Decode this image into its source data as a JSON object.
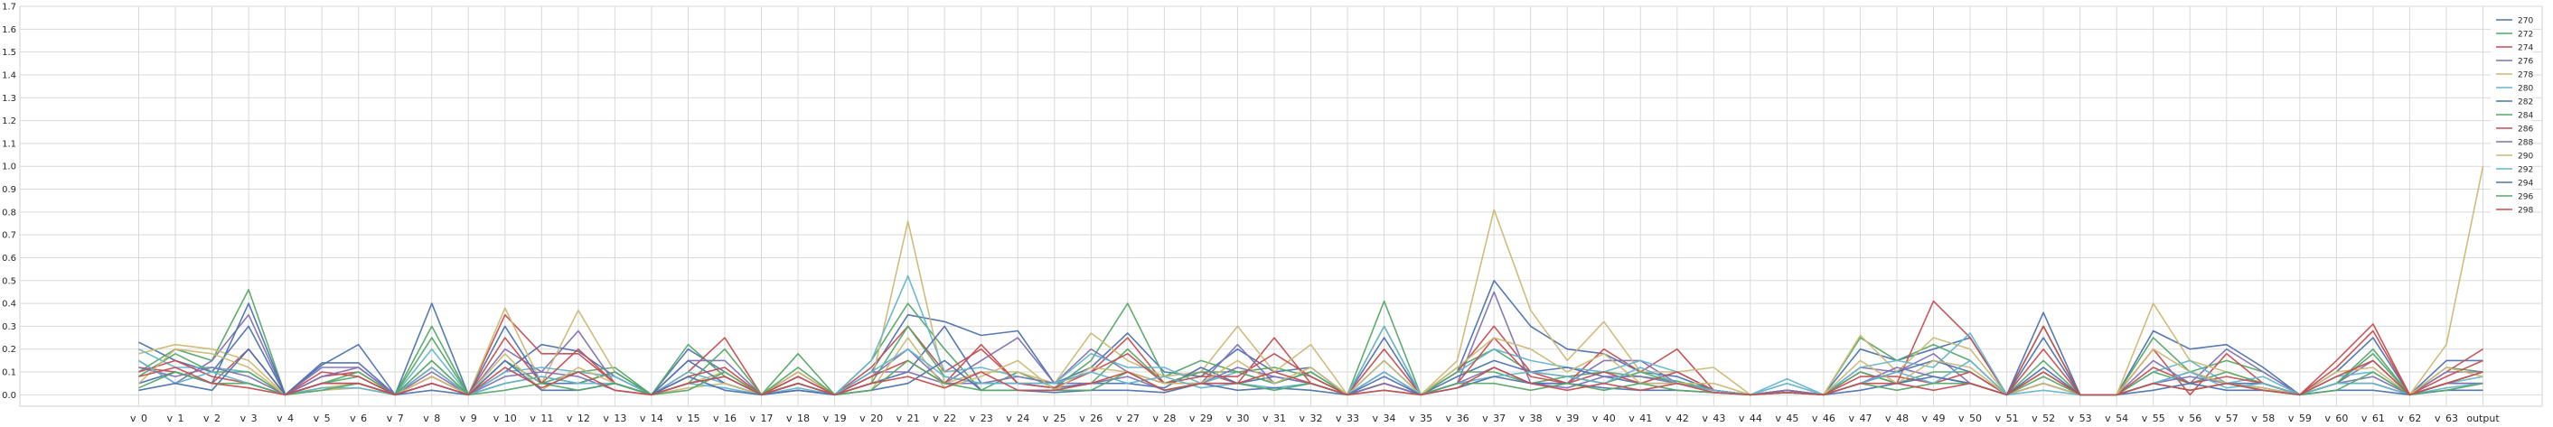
{
  "chart_data": {
    "type": "line",
    "title": "",
    "xlabel": "",
    "ylabel": "",
    "ylim": [
      -0.05,
      1.7
    ],
    "yticks": [
      0.0,
      0.1,
      0.2,
      0.3,
      0.4,
      0.5,
      0.6,
      0.7,
      0.8,
      0.9,
      1.0,
      1.1,
      1.2,
      1.3,
      1.4,
      1.5,
      1.6,
      1.7
    ],
    "grid": true,
    "legend_position": "top-right",
    "categories": [
      "v_0",
      "v_1",
      "v_2",
      "v_3",
      "v_4",
      "v_5",
      "v_6",
      "v_7",
      "v_8",
      "v_9",
      "v_10",
      "v_11",
      "v_12",
      "v_13",
      "v_14",
      "v_15",
      "v_16",
      "v_17",
      "v_18",
      "v_19",
      "v_20",
      "v_21",
      "v_22",
      "v_23",
      "v_24",
      "v_25",
      "v_26",
      "v_27",
      "v_28",
      "v_29",
      "v_30",
      "v_31",
      "v_32",
      "v_33",
      "v_34",
      "v_35",
      "v_36",
      "v_37",
      "v_38",
      "v_39",
      "v_40",
      "v_41",
      "v_42",
      "v_43",
      "v_44",
      "v_45",
      "v_46",
      "v_47",
      "v_48",
      "v_49",
      "v_50",
      "v_51",
      "v_52",
      "v_53",
      "v_54",
      "v_55",
      "v_56",
      "v_57",
      "v_58",
      "v_59",
      "v_60",
      "v_61",
      "v_62",
      "v_63",
      "output"
    ],
    "series": [
      {
        "name": "270",
        "color": "#4c72b0",
        "values": [
          0.23,
          0.15,
          0.1,
          0.3,
          0.0,
          0.13,
          0.22,
          0.0,
          0.4,
          0.0,
          0.1,
          0.22,
          0.19,
          0.08,
          0.0,
          0.2,
          0.1,
          0.0,
          0.08,
          0.0,
          0.1,
          0.35,
          0.32,
          0.26,
          0.28,
          0.05,
          0.12,
          0.27,
          0.1,
          0.08,
          0.2,
          0.1,
          0.12,
          0.0,
          0.25,
          0.0,
          0.1,
          0.5,
          0.3,
          0.2,
          0.18,
          0.1,
          0.08,
          0.02,
          0.0,
          0.02,
          0.0,
          0.2,
          0.15,
          0.2,
          0.25,
          0.0,
          0.36,
          0.0,
          0.0,
          0.28,
          0.2,
          0.22,
          0.12,
          0.0,
          0.1,
          0.25,
          0.0,
          0.15,
          0.15
        ]
      },
      {
        "name": "272",
        "color": "#55a868",
        "values": [
          0.1,
          0.2,
          0.15,
          0.46,
          0.0,
          0.05,
          0.08,
          0.0,
          0.3,
          0.0,
          0.15,
          0.05,
          0.1,
          0.12,
          0.0,
          0.22,
          0.08,
          0.0,
          0.18,
          0.0,
          0.15,
          0.4,
          0.2,
          0.02,
          0.1,
          0.03,
          0.15,
          0.4,
          0.08,
          0.15,
          0.1,
          0.12,
          0.08,
          0.0,
          0.41,
          0.0,
          0.12,
          0.2,
          0.1,
          0.08,
          0.1,
          0.08,
          0.06,
          0.02,
          0.0,
          0.02,
          0.0,
          0.25,
          0.15,
          0.22,
          0.15,
          0.0,
          0.3,
          0.0,
          0.0,
          0.25,
          0.1,
          0.15,
          0.1,
          0.0,
          0.05,
          0.2,
          0.0,
          0.12,
          0.1
        ]
      },
      {
        "name": "274",
        "color": "#c44e52",
        "values": [
          0.12,
          0.1,
          0.05,
          0.2,
          0.0,
          0.08,
          0.1,
          0.0,
          0.12,
          0.0,
          0.35,
          0.18,
          0.18,
          0.05,
          0.0,
          0.1,
          0.25,
          0.0,
          0.1,
          0.0,
          0.12,
          0.3,
          0.1,
          0.2,
          0.05,
          0.05,
          0.1,
          0.25,
          0.05,
          0.1,
          0.05,
          0.25,
          0.05,
          0.0,
          0.2,
          0.0,
          0.1,
          0.3,
          0.1,
          0.05,
          0.2,
          0.1,
          0.2,
          0.02,
          0.0,
          0.02,
          0.0,
          0.1,
          0.05,
          0.41,
          0.25,
          0.0,
          0.3,
          0.0,
          0.0,
          0.2,
          0.0,
          0.18,
          0.05,
          0.0,
          0.15,
          0.31,
          0.0,
          0.1,
          0.2
        ]
      },
      {
        "name": "276",
        "color": "#8172b2",
        "values": [
          0.15,
          0.05,
          0.15,
          0.35,
          0.0,
          0.12,
          0.12,
          0.0,
          0.1,
          0.0,
          0.2,
          0.1,
          0.28,
          0.05,
          0.0,
          0.15,
          0.15,
          0.0,
          0.05,
          0.0,
          0.08,
          0.2,
          0.05,
          0.15,
          0.25,
          0.05,
          0.2,
          0.1,
          0.05,
          0.05,
          0.22,
          0.05,
          0.1,
          0.0,
          0.1,
          0.0,
          0.05,
          0.45,
          0.05,
          0.05,
          0.15,
          0.15,
          0.05,
          0.02,
          0.0,
          0.02,
          0.0,
          0.12,
          0.1,
          0.18,
          0.05,
          0.0,
          0.1,
          0.0,
          0.0,
          0.15,
          0.05,
          0.2,
          0.1,
          0.0,
          0.05,
          0.15,
          0.0,
          0.1,
          0.1
        ]
      },
      {
        "name": "278",
        "color": "#ccb974",
        "values": [
          0.18,
          0.22,
          0.2,
          0.15,
          0.0,
          0.03,
          0.05,
          0.0,
          0.15,
          0.0,
          0.38,
          0.05,
          0.37,
          0.1,
          0.0,
          0.05,
          0.1,
          0.0,
          0.1,
          0.0,
          0.05,
          0.76,
          0.05,
          0.1,
          0.1,
          0.05,
          0.27,
          0.15,
          0.08,
          0.1,
          0.3,
          0.1,
          0.22,
          0.0,
          0.3,
          0.0,
          0.15,
          0.81,
          0.37,
          0.15,
          0.32,
          0.1,
          0.1,
          0.12,
          0.0,
          0.02,
          0.0,
          0.26,
          0.1,
          0.25,
          0.2,
          0.0,
          0.1,
          0.0,
          0.0,
          0.4,
          0.15,
          0.1,
          0.05,
          0.0,
          0.1,
          0.12,
          0.0,
          0.22,
          1.0
        ]
      },
      {
        "name": "280",
        "color": "#64b5cd",
        "values": [
          0.2,
          0.12,
          0.12,
          0.1,
          0.0,
          0.05,
          0.05,
          0.0,
          0.2,
          0.0,
          0.1,
          0.12,
          0.1,
          0.08,
          0.0,
          0.1,
          0.05,
          0.0,
          0.05,
          0.0,
          0.15,
          0.52,
          0.1,
          0.12,
          0.08,
          0.05,
          0.18,
          0.12,
          0.12,
          0.05,
          0.1,
          0.05,
          0.1,
          0.0,
          0.3,
          0.0,
          0.1,
          0.2,
          0.15,
          0.12,
          0.1,
          0.15,
          0.1,
          0.02,
          0.0,
          0.07,
          0.0,
          0.12,
          0.15,
          0.12,
          0.27,
          0.0,
          0.05,
          0.0,
          0.0,
          0.1,
          0.15,
          0.05,
          0.08,
          0.0,
          0.08,
          0.1,
          0.0,
          0.05,
          0.08
        ]
      },
      {
        "name": "282",
        "color": "#4c72b0",
        "values": [
          0.05,
          0.1,
          0.05,
          0.4,
          0.0,
          0.14,
          0.14,
          0.0,
          0.05,
          0.0,
          0.3,
          0.05,
          0.05,
          0.1,
          0.0,
          0.15,
          0.05,
          0.0,
          0.05,
          0.0,
          0.05,
          0.1,
          0.3,
          0.05,
          0.05,
          0.03,
          0.05,
          0.05,
          0.03,
          0.12,
          0.05,
          0.08,
          0.05,
          0.0,
          0.15,
          0.0,
          0.08,
          0.15,
          0.1,
          0.12,
          0.08,
          0.05,
          0.05,
          0.02,
          0.0,
          0.02,
          0.0,
          0.05,
          0.1,
          0.15,
          0.1,
          0.0,
          0.25,
          0.0,
          0.0,
          0.05,
          0.1,
          0.05,
          0.05,
          0.0,
          0.05,
          0.05,
          0.0,
          0.05,
          0.05
        ]
      },
      {
        "name": "284",
        "color": "#55a868",
        "values": [
          0.08,
          0.18,
          0.1,
          0.1,
          0.0,
          0.05,
          0.1,
          0.0,
          0.25,
          0.0,
          0.05,
          0.08,
          0.05,
          0.1,
          0.0,
          0.05,
          0.2,
          0.0,
          0.12,
          0.0,
          0.05,
          0.3,
          0.08,
          0.05,
          0.05,
          0.05,
          0.05,
          0.2,
          0.05,
          0.1,
          0.1,
          0.05,
          0.1,
          0.0,
          0.05,
          0.0,
          0.1,
          0.1,
          0.05,
          0.08,
          0.05,
          0.1,
          0.05,
          0.02,
          0.0,
          0.02,
          0.0,
          0.1,
          0.05,
          0.1,
          0.1,
          0.0,
          0.15,
          0.0,
          0.0,
          0.1,
          0.05,
          0.1,
          0.05,
          0.0,
          0.05,
          0.18,
          0.0,
          0.05,
          0.1
        ]
      },
      {
        "name": "286",
        "color": "#c44e52",
        "values": [
          0.1,
          0.15,
          0.08,
          0.05,
          0.0,
          0.1,
          0.08,
          0.0,
          0.08,
          0.0,
          0.25,
          0.05,
          0.2,
          0.05,
          0.0,
          0.08,
          0.12,
          0.0,
          0.08,
          0.0,
          0.08,
          0.15,
          0.05,
          0.22,
          0.05,
          0.03,
          0.1,
          0.18,
          0.05,
          0.08,
          0.08,
          0.18,
          0.08,
          0.0,
          0.05,
          0.0,
          0.05,
          0.25,
          0.08,
          0.05,
          0.1,
          0.05,
          0.1,
          0.02,
          0.0,
          0.02,
          0.0,
          0.08,
          0.08,
          0.05,
          0.1,
          0.0,
          0.2,
          0.0,
          0.0,
          0.12,
          0.05,
          0.08,
          0.05,
          0.0,
          0.12,
          0.28,
          0.0,
          0.08,
          0.15
        ]
      },
      {
        "name": "288",
        "color": "#8172b2",
        "values": [
          0.12,
          0.08,
          0.12,
          0.08,
          0.0,
          0.08,
          0.12,
          0.0,
          0.05,
          0.0,
          0.08,
          0.1,
          0.08,
          0.02,
          0.0,
          0.05,
          0.08,
          0.0,
          0.02,
          0.0,
          0.1,
          0.1,
          0.05,
          0.05,
          0.08,
          0.05,
          0.05,
          0.08,
          0.02,
          0.05,
          0.12,
          0.08,
          0.05,
          0.0,
          0.05,
          0.0,
          0.05,
          0.12,
          0.05,
          0.03,
          0.08,
          0.08,
          0.05,
          0.02,
          0.0,
          0.02,
          0.0,
          0.05,
          0.12,
          0.08,
          0.05,
          0.0,
          0.05,
          0.0,
          0.0,
          0.05,
          0.08,
          0.05,
          0.03,
          0.0,
          0.05,
          0.08,
          0.0,
          0.05,
          0.05
        ]
      },
      {
        "name": "290",
        "color": "#ccb974",
        "values": [
          0.05,
          0.2,
          0.18,
          0.12,
          0.0,
          0.02,
          0.03,
          0.0,
          0.08,
          0.0,
          0.18,
          0.02,
          0.12,
          0.05,
          0.0,
          0.03,
          0.05,
          0.0,
          0.05,
          0.0,
          0.02,
          0.25,
          0.03,
          0.08,
          0.15,
          0.02,
          0.12,
          0.1,
          0.05,
          0.05,
          0.15,
          0.05,
          0.12,
          0.0,
          0.15,
          0.0,
          0.12,
          0.25,
          0.2,
          0.1,
          0.18,
          0.05,
          0.05,
          0.05,
          0.0,
          0.01,
          0.0,
          0.15,
          0.05,
          0.15,
          0.12,
          0.0,
          0.05,
          0.0,
          0.0,
          0.2,
          0.1,
          0.05,
          0.03,
          0.0,
          0.05,
          0.05,
          0.0,
          0.12,
          0.08
        ]
      },
      {
        "name": "292",
        "color": "#64b5cd",
        "values": [
          0.15,
          0.05,
          0.1,
          0.05,
          0.0,
          0.03,
          0.03,
          0.0,
          0.12,
          0.0,
          0.05,
          0.08,
          0.05,
          0.05,
          0.0,
          0.05,
          0.03,
          0.0,
          0.03,
          0.0,
          0.1,
          0.2,
          0.08,
          0.05,
          0.05,
          0.05,
          0.1,
          0.05,
          0.08,
          0.03,
          0.05,
          0.03,
          0.05,
          0.0,
          0.1,
          0.0,
          0.05,
          0.08,
          0.1,
          0.08,
          0.05,
          0.12,
          0.05,
          0.02,
          0.0,
          0.05,
          0.0,
          0.05,
          0.1,
          0.05,
          0.15,
          0.0,
          0.02,
          0.0,
          0.0,
          0.05,
          0.1,
          0.03,
          0.05,
          0.0,
          0.05,
          0.05,
          0.0,
          0.03,
          0.05
        ]
      },
      {
        "name": "294",
        "color": "#4c72b0",
        "values": [
          0.02,
          0.05,
          0.02,
          0.2,
          0.0,
          0.05,
          0.05,
          0.0,
          0.02,
          0.0,
          0.15,
          0.02,
          0.02,
          0.05,
          0.0,
          0.08,
          0.02,
          0.0,
          0.02,
          0.0,
          0.02,
          0.05,
          0.15,
          0.02,
          0.02,
          0.01,
          0.02,
          0.02,
          0.01,
          0.05,
          0.02,
          0.03,
          0.02,
          0.0,
          0.08,
          0.0,
          0.03,
          0.08,
          0.05,
          0.05,
          0.03,
          0.02,
          0.02,
          0.01,
          0.0,
          0.01,
          0.0,
          0.02,
          0.05,
          0.08,
          0.05,
          0.0,
          0.12,
          0.0,
          0.0,
          0.02,
          0.05,
          0.02,
          0.02,
          0.0,
          0.02,
          0.02,
          0.0,
          0.02,
          0.02
        ]
      },
      {
        "name": "296",
        "color": "#55a868",
        "values": [
          0.03,
          0.1,
          0.05,
          0.05,
          0.0,
          0.02,
          0.05,
          0.0,
          0.15,
          0.0,
          0.02,
          0.05,
          0.02,
          0.05,
          0.0,
          0.02,
          0.1,
          0.0,
          0.05,
          0.0,
          0.02,
          0.15,
          0.05,
          0.02,
          0.02,
          0.02,
          0.02,
          0.1,
          0.02,
          0.05,
          0.05,
          0.02,
          0.05,
          0.0,
          0.02,
          0.0,
          0.05,
          0.05,
          0.02,
          0.05,
          0.02,
          0.05,
          0.02,
          0.01,
          0.0,
          0.01,
          0.0,
          0.05,
          0.02,
          0.05,
          0.05,
          0.0,
          0.08,
          0.0,
          0.0,
          0.05,
          0.02,
          0.05,
          0.02,
          0.0,
          0.02,
          0.1,
          0.0,
          0.02,
          0.05
        ]
      },
      {
        "name": "298",
        "color": "#c44e52",
        "values": [
          0.08,
          0.12,
          0.05,
          0.03,
          0.0,
          0.05,
          0.05,
          0.0,
          0.05,
          0.0,
          0.12,
          0.03,
          0.1,
          0.02,
          0.0,
          0.05,
          0.08,
          0.0,
          0.05,
          0.0,
          0.05,
          0.08,
          0.03,
          0.1,
          0.02,
          0.02,
          0.05,
          0.1,
          0.02,
          0.05,
          0.05,
          0.1,
          0.05,
          0.0,
          0.02,
          0.0,
          0.03,
          0.12,
          0.05,
          0.02,
          0.05,
          0.02,
          0.05,
          0.01,
          0.0,
          0.01,
          0.0,
          0.05,
          0.05,
          0.02,
          0.05,
          0.0,
          0.1,
          0.0,
          0.0,
          0.05,
          0.02,
          0.05,
          0.02,
          0.0,
          0.08,
          0.15,
          0.0,
          0.05,
          0.1
        ]
      }
    ]
  }
}
